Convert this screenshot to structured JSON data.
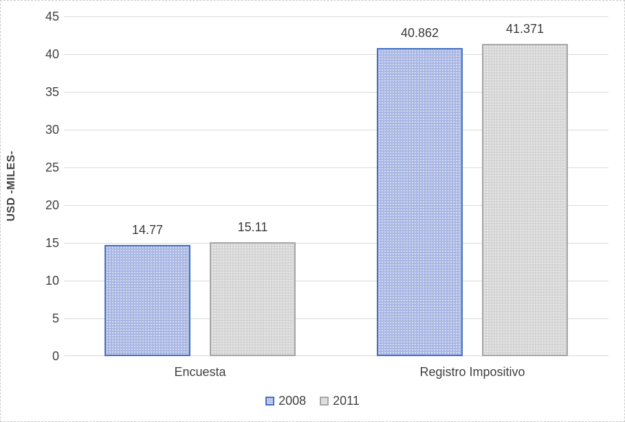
{
  "chart_data": {
    "type": "bar",
    "title": "",
    "categories": [
      "Encuesta",
      "Registro Impositivo"
    ],
    "series": [
      {
        "name": "2008",
        "values": [
          14.77,
          40.862
        ],
        "labels": [
          "14.77",
          "40.862"
        ],
        "fill_color": "#a8b6e3",
        "border_color": "#4472c4"
      },
      {
        "name": "2011",
        "values": [
          15.11,
          41.371
        ],
        "labels": [
          "15.11",
          "41.371"
        ],
        "fill_color": "#d4d4d4",
        "border_color": "#a6a6a6"
      }
    ],
    "xlabel": "",
    "ylabel": "USD -MILES-",
    "ylim": [
      0,
      45
    ],
    "yticks": [
      0,
      5,
      10,
      15,
      20,
      25,
      30,
      35,
      40,
      45
    ],
    "grid": "horizontal",
    "gridline_color": "#d9d9d9",
    "legend_position": "bottom",
    "text_color": "#3f3f3f",
    "background_color": "#ffffff"
  }
}
